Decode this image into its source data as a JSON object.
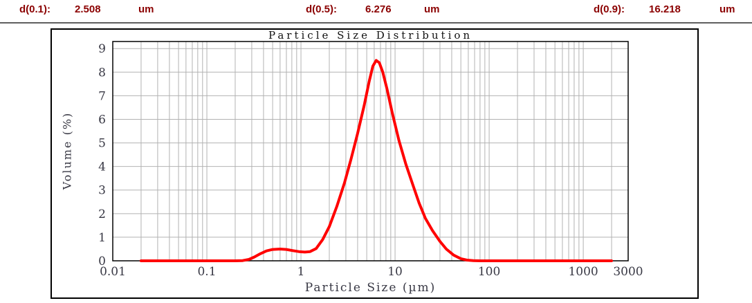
{
  "header": {
    "text_color": "#8b0000",
    "items": [
      {
        "label": "d(0.1):",
        "value": "2.508",
        "unit": "um"
      },
      {
        "label": "d(0.5):",
        "value": "6.276",
        "unit": "um"
      },
      {
        "label": "d(0.9):",
        "value": "16.218",
        "unit": "um"
      }
    ]
  },
  "chart_data": {
    "type": "line",
    "title": "Particle Size Distribution",
    "xlabel": "Particle Size (µm)",
    "ylabel": "Volume (%)",
    "x_scale": "log",
    "xlim": [
      0.01,
      3000
    ],
    "ylim": [
      0,
      9.3
    ],
    "x_ticks": [
      0.01,
      0.1,
      1,
      10,
      100,
      1000,
      3000
    ],
    "x_tick_labels": [
      "0.01",
      "0.1",
      "1",
      "10",
      "100",
      "1000",
      "3000"
    ],
    "y_ticks": [
      0,
      1,
      2,
      3,
      4,
      5,
      6,
      7,
      8,
      9
    ],
    "grid": true,
    "grid_color": "#b2b2b2",
    "line_color": "#ff0000",
    "line_width": 4,
    "legend": "none",
    "series": [
      {
        "name": "Volume (%)",
        "points": [
          [
            0.02,
            0
          ],
          [
            0.05,
            0
          ],
          [
            0.1,
            0
          ],
          [
            0.15,
            0
          ],
          [
            0.2,
            0
          ],
          [
            0.24,
            0.01
          ],
          [
            0.28,
            0.06
          ],
          [
            0.32,
            0.16
          ],
          [
            0.37,
            0.3
          ],
          [
            0.43,
            0.42
          ],
          [
            0.5,
            0.48
          ],
          [
            0.6,
            0.5
          ],
          [
            0.7,
            0.48
          ],
          [
            0.82,
            0.43
          ],
          [
            0.95,
            0.39
          ],
          [
            1.1,
            0.37
          ],
          [
            1.25,
            0.39
          ],
          [
            1.45,
            0.52
          ],
          [
            1.7,
            0.9
          ],
          [
            2.0,
            1.45
          ],
          [
            2.4,
            2.3
          ],
          [
            2.9,
            3.3
          ],
          [
            3.4,
            4.3
          ],
          [
            4.0,
            5.4
          ],
          [
            4.7,
            6.6
          ],
          [
            5.3,
            7.6
          ],
          [
            5.8,
            8.25
          ],
          [
            6.3,
            8.5
          ],
          [
            6.8,
            8.4
          ],
          [
            7.4,
            8.0
          ],
          [
            8.2,
            7.3
          ],
          [
            9.3,
            6.3
          ],
          [
            11,
            5.1
          ],
          [
            13,
            4.1
          ],
          [
            15.5,
            3.2
          ],
          [
            18,
            2.45
          ],
          [
            21,
            1.8
          ],
          [
            25,
            1.28
          ],
          [
            30,
            0.82
          ],
          [
            35,
            0.5
          ],
          [
            42,
            0.24
          ],
          [
            50,
            0.09
          ],
          [
            58,
            0.03
          ],
          [
            68,
            0.01
          ],
          [
            80,
            0
          ],
          [
            120,
            0
          ],
          [
            300,
            0
          ],
          [
            800,
            0
          ],
          [
            1500,
            0
          ],
          [
            2000,
            0
          ]
        ]
      }
    ]
  }
}
